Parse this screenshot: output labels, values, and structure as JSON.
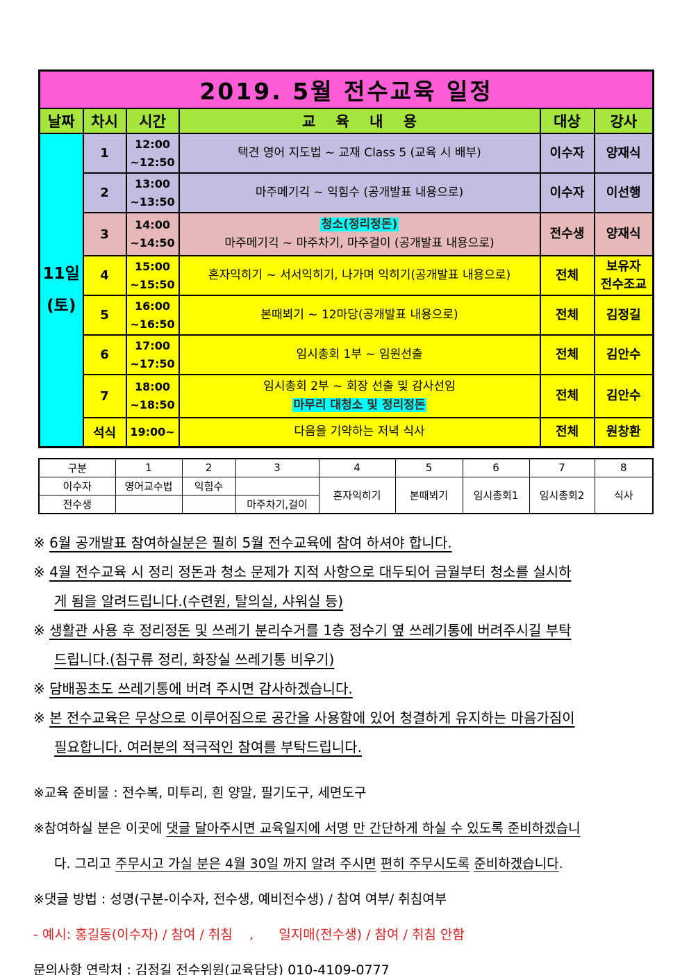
{
  "colors": {
    "title_bg": "#ff5cd8",
    "header_bg": "#a5e53d",
    "lavender": "#c4bde2",
    "pink": "#e6b9b8",
    "yellow": "#ffff00",
    "cyan": "#00fefe",
    "highlight_text": "#44281f",
    "red": "#e02020",
    "text": "#000000"
  },
  "schedule": {
    "title": "2019. 5월 전수교육 일정",
    "columns": [
      "날짜",
      "차시",
      "시간",
      "교    육    내    용",
      "대상",
      "강사"
    ],
    "date": {
      "line1": "11일",
      "line2": "(토)"
    },
    "rows": [
      {
        "session": "1",
        "time": [
          "12:00",
          "~12:50"
        ],
        "content": [
          {
            "text": "택견 영어 지도법 ~ 교재 Class 5 (교육 시 배부)"
          }
        ],
        "target": "이수자",
        "instructor": [
          "양재식"
        ],
        "bg": "lavender"
      },
      {
        "session": "2",
        "time": [
          "13:00",
          "~13:50"
        ],
        "content": [
          {
            "text": "마주메기긱 ~ 익힘수 (공개발표 내용으로)"
          }
        ],
        "target": "이수자",
        "instructor": [
          "이선행"
        ],
        "bg": "lavender"
      },
      {
        "session": "3",
        "time": [
          "14:00",
          "~14:50"
        ],
        "content": [
          {
            "text": "청소(정리정돈)",
            "highlight": true
          },
          {
            "text": "마주메기긱 ~ 마주차기, 마주걸이 (공개발표 내용으로)"
          }
        ],
        "target": "전수생",
        "instructor": [
          "양재식"
        ],
        "bg": "pink"
      },
      {
        "session": "4",
        "time": [
          "15:00",
          "~15:50"
        ],
        "content": [
          {
            "text": "혼자익히기 ~ 서서익히기, 나가며 익히기(공개발표 내용으로)"
          }
        ],
        "target": "전체",
        "instructor": [
          "보유자",
          "전수조교"
        ],
        "bg": "yellow"
      },
      {
        "session": "5",
        "time": [
          "16:00",
          "~16:50"
        ],
        "content": [
          {
            "text": "본때뵈기 ~ 12마당(공개발표 내용으로)"
          }
        ],
        "target": "전체",
        "instructor": [
          "김정길"
        ],
        "bg": "yellow"
      },
      {
        "session": "6",
        "time": [
          "17:00",
          "~17:50"
        ],
        "content": [
          {
            "text": "임시총회 1부 ~ 임원선출"
          }
        ],
        "target": "전체",
        "instructor": [
          "김안수"
        ],
        "bg": "yellow"
      },
      {
        "session": "7",
        "time": [
          "18:00",
          "~18:50"
        ],
        "content": [
          {
            "text": "임시총회 2부 ~ 회장 선출 및 감사선임"
          },
          {
            "text": "마무리 대청소 및 정리정돈",
            "highlight": true
          }
        ],
        "target": "전체",
        "instructor": [
          "김안수"
        ],
        "bg": "yellow"
      },
      {
        "session": "석식",
        "time": [
          "19:00~"
        ],
        "content": [
          {
            "text": "다음을 기약하는 저녁 식사"
          }
        ],
        "target": "전체",
        "instructor": [
          "원창환"
        ],
        "bg": "yellow"
      }
    ]
  },
  "summary": {
    "headers": [
      "구분",
      "1",
      "2",
      "3",
      "4",
      "5",
      "6",
      "7",
      "8"
    ],
    "row_labels": [
      "이수자",
      "전수생"
    ],
    "isuja": [
      "영어교수법",
      "익힘수",
      ""
    ],
    "jeonsusaeng": [
      "",
      "",
      "마주차기,걸이"
    ],
    "merged": [
      "혼자익히기",
      "본때뵈기",
      "임시총회1",
      "임시총회2",
      "식사"
    ]
  },
  "notes": [
    {
      "lines": [
        [
          {
            "t": "※ "
          },
          {
            "t": "6월 공개발표 참여하실분은 필히 5월 전수교육에 참여 하셔야 합니다.",
            "u": true
          }
        ]
      ]
    },
    {
      "lines": [
        [
          {
            "t": "※ "
          },
          {
            "t": "4월 전수교육 시 정리 정돈과 청소 문제가 지적 사항으로 대두되어 금월부터 청소를 실시하",
            "u": true
          }
        ],
        [
          {
            "t": "게 됨을 알려드립니다.(수련원, 탈의실, 샤워실 등)",
            "u": true
          }
        ]
      ]
    },
    {
      "lines": [
        [
          {
            "t": "※ "
          },
          {
            "t": "생활관 사용 후 정리정돈 및 쓰레기 분리수거를 1층 정수기 옆 쓰레기통에 버려주시길 부탁",
            "u": true
          }
        ],
        [
          {
            "t": "드립니다.(침구류 정리, 화장실 쓰레기통 비우기)",
            "u": true
          }
        ]
      ]
    },
    {
      "lines": [
        [
          {
            "t": "※ "
          },
          {
            "t": "담배꽁초도 쓰레기통에 버려 주시면 감사하겠습니다.",
            "u": true
          }
        ]
      ]
    },
    {
      "lines": [
        [
          {
            "t": "※ "
          },
          {
            "t": "본 전수교육은 무상으로 이루어짐으로 공간을 사용함에 있어 청결하게 유지하는 마음가짐이",
            "u": true
          }
        ],
        [
          {
            "t": "필요합니다. 여러분의 적극적인 참여를 부탁드립니다.",
            "u": true
          }
        ]
      ]
    }
  ],
  "footer": [
    {
      "lines": [
        [
          {
            "t": "※교육 준비물 : 전수복, 미투리, 흰 양말, 필기도구, 세면도구"
          }
        ]
      ]
    },
    {
      "lines": [
        [
          {
            "t": "※참여하실 분은 이곳에 "
          },
          {
            "t": "댓글 달아주시면 교육일지에 서명 만 간단하게 하실 수 있도록 준비하겠습니",
            "u": true
          }
        ],
        [
          {
            "t": "다. 그리고 "
          },
          {
            "t": "주무시고 가실 분은 4월 30일 까지 알려 주시면",
            "u": true
          },
          {
            "t": " "
          },
          {
            "t": "편히 주무시도록",
            "u": true
          },
          {
            "t": " "
          },
          {
            "t": "준비하겠습니다",
            "u": true
          },
          {
            "t": "."
          }
        ]
      ]
    },
    {
      "lines": [
        [
          {
            "t": "※댓글 방법 : 성명(구분-이수자, 전수생, 예비전수생) / 참여 여부/ 취침여부"
          }
        ]
      ]
    },
    {
      "lines": [
        [
          {
            "t": "- 예시: 홍길동(이수자) / 참여 / 취침    ,      일지매(전수생) / 참여 / 취침 안함",
            "red": true
          }
        ]
      ]
    },
    {
      "lines": [
        [
          {
            "t": "문의사항 연락처 : 김정길 전수위원(교육담당) 010-4109-0777"
          }
        ]
      ]
    }
  ]
}
